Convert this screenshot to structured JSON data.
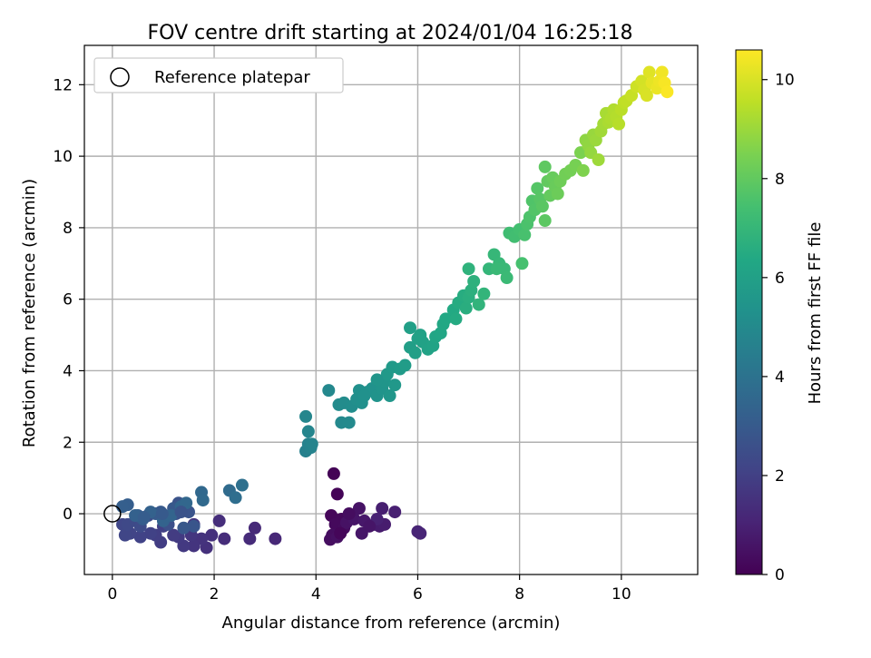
{
  "chart_data": {
    "type": "scatter",
    "title": "FOV centre drift starting at 2024/01/04 16:25:18",
    "xlabel": "Angular distance from reference (arcmin)",
    "ylabel": "Rotation from reference (arcmin)",
    "xlim": [
      -0.55,
      11.5
    ],
    "ylim": [
      -1.7,
      13.1
    ],
    "xticks": [
      "0",
      "2",
      "4",
      "6",
      "8",
      "10"
    ],
    "yticks": [
      "0",
      "2",
      "4",
      "6",
      "8",
      "10",
      "12"
    ],
    "grid": true,
    "legend": {
      "placement": "top-left",
      "entries": [
        {
          "label": "Reference platepar",
          "marker": "open-circle"
        }
      ]
    },
    "reference_point": {
      "x": 0,
      "y": 0
    },
    "colorbar": {
      "label": "Hours from first FF file",
      "colormap": "viridis",
      "range": [
        0,
        10.6
      ],
      "ticks": [
        "0",
        "2",
        "4",
        "6",
        "8",
        "10"
      ]
    },
    "series": [
      {
        "points": [
          [
            4.35,
            1.12,
            0.05
          ],
          [
            4.42,
            0.55,
            0.1
          ],
          [
            4.3,
            -0.05,
            0.15
          ],
          [
            4.5,
            -0.15,
            0.2
          ],
          [
            4.38,
            -0.3,
            0.25
          ],
          [
            4.55,
            -0.4,
            0.3
          ],
          [
            4.32,
            -0.6,
            0.35
          ],
          [
            4.28,
            -0.72,
            0.4
          ],
          [
            4.42,
            -0.65,
            0.45
          ],
          [
            4.6,
            -0.25,
            0.5
          ],
          [
            4.85,
            0.15,
            0.55
          ],
          [
            4.75,
            -0.15,
            0.6
          ],
          [
            4.9,
            -0.55,
            0.65
          ],
          [
            4.95,
            -0.2,
            0.7
          ],
          [
            5.15,
            -0.3,
            0.75
          ],
          [
            5.25,
            -0.35,
            0.8
          ],
          [
            5.35,
            -0.3,
            0.85
          ],
          [
            5.3,
            0.15,
            0.9
          ],
          [
            5.55,
            0.05,
            0.95
          ],
          [
            5.2,
            -0.15,
            1.0
          ],
          [
            6.0,
            -0.5,
            1.05
          ],
          [
            6.05,
            -0.55,
            1.1
          ],
          [
            4.48,
            -0.55,
            0.15
          ],
          [
            4.65,
            0.0,
            0.35
          ],
          [
            5.05,
            -0.35,
            0.6
          ]
        ]
      },
      {
        "points": [
          [
            3.2,
            -0.7,
            1.2
          ],
          [
            2.8,
            -0.4,
            1.25
          ],
          [
            2.7,
            -0.7,
            1.3
          ],
          [
            2.2,
            -0.7,
            1.35
          ],
          [
            2.1,
            -0.2,
            1.4
          ],
          [
            1.95,
            -0.6,
            1.45
          ],
          [
            1.85,
            -0.95,
            1.5
          ],
          [
            1.75,
            -0.7,
            1.55
          ],
          [
            1.6,
            -0.9,
            1.6
          ],
          [
            1.55,
            -0.6,
            1.65
          ],
          [
            1.6,
            -0.3,
            1.7
          ],
          [
            1.4,
            -0.9,
            1.75
          ],
          [
            1.3,
            -0.65,
            1.8
          ],
          [
            1.2,
            -0.6,
            1.85
          ],
          [
            0.95,
            -0.8,
            1.9
          ],
          [
            0.85,
            -0.6,
            1.95
          ],
          [
            1.0,
            -0.35,
            2.0
          ],
          [
            0.75,
            -0.55,
            2.05
          ],
          [
            0.55,
            -0.65,
            2.1
          ],
          [
            0.35,
            -0.55,
            2.15
          ],
          [
            0.25,
            -0.6,
            2.2
          ],
          [
            0.2,
            -0.3,
            2.25
          ],
          [
            0.3,
            -0.3,
            2.3
          ],
          [
            0.45,
            -0.2,
            2.35
          ],
          [
            0.55,
            -0.35,
            2.4
          ],
          [
            0.7,
            -0.05,
            2.45
          ],
          [
            0.9,
            0.0,
            2.5
          ],
          [
            1.05,
            -0.1,
            2.55
          ],
          [
            1.1,
            -0.3,
            2.6
          ],
          [
            1.25,
            0.0,
            2.65
          ],
          [
            1.3,
            0.3,
            2.7
          ],
          [
            1.5,
            0.05,
            2.75
          ],
          [
            1.6,
            -0.35,
            2.8
          ],
          [
            1.4,
            -0.4,
            2.85
          ],
          [
            1.2,
            0.15,
            2.9
          ],
          [
            0.95,
            0.05,
            2.95
          ],
          [
            0.85,
            0.0,
            3.0
          ],
          [
            0.6,
            -0.15,
            3.05
          ],
          [
            0.5,
            -0.05,
            3.1
          ],
          [
            0.3,
            0.25,
            3.15
          ],
          [
            0.2,
            0.2,
            3.2
          ],
          [
            0.45,
            -0.05,
            3.25
          ],
          [
            0.75,
            0.05,
            3.3
          ],
          [
            1.0,
            -0.2,
            3.35
          ],
          [
            1.15,
            -0.05,
            3.4
          ],
          [
            1.35,
            0.2,
            3.45
          ],
          [
            1.45,
            0.3,
            3.5
          ],
          [
            1.75,
            0.6,
            3.55
          ],
          [
            1.78,
            0.38,
            3.6
          ],
          [
            2.3,
            0.65,
            3.7
          ],
          [
            2.42,
            0.45,
            3.8
          ],
          [
            2.55,
            0.8,
            3.9
          ],
          [
            0.98,
            0.0,
            3.0
          ],
          [
            0.62,
            -0.1,
            3.1
          ],
          [
            1.35,
            0.05,
            2.7
          ]
        ]
      },
      {
        "points": [
          [
            3.8,
            1.75,
            4.6
          ],
          [
            3.85,
            1.95,
            4.65
          ],
          [
            3.9,
            1.85,
            4.7
          ],
          [
            3.92,
            1.95,
            4.75
          ],
          [
            3.85,
            2.3,
            4.8
          ],
          [
            3.8,
            2.72,
            4.85
          ],
          [
            4.25,
            3.45,
            4.9
          ],
          [
            4.5,
            2.55,
            4.95
          ],
          [
            4.65,
            2.55,
            5.0
          ],
          [
            4.45,
            3.05,
            5.05
          ],
          [
            4.55,
            3.1,
            5.1
          ],
          [
            4.7,
            3.0,
            5.15
          ],
          [
            4.8,
            3.2,
            5.2
          ],
          [
            4.85,
            3.45,
            5.25
          ],
          [
            5.0,
            3.4,
            5.3
          ],
          [
            5.1,
            3.5,
            5.35
          ],
          [
            5.2,
            3.3,
            5.4
          ],
          [
            5.3,
            3.5,
            5.45
          ],
          [
            5.35,
            3.7,
            5.5
          ],
          [
            5.45,
            3.3,
            5.55
          ],
          [
            5.55,
            3.6,
            5.6
          ],
          [
            5.4,
            3.9,
            5.65
          ],
          [
            5.5,
            4.1,
            5.7
          ],
          [
            5.65,
            4.05,
            5.75
          ],
          [
            5.75,
            4.15,
            5.8
          ],
          [
            4.9,
            3.1,
            5.25
          ],
          [
            5.2,
            3.75,
            5.5
          ],
          [
            4.95,
            3.3,
            5.3
          ]
        ]
      },
      {
        "points": [
          [
            5.85,
            4.65,
            5.9
          ],
          [
            5.95,
            4.5,
            5.95
          ],
          [
            6.0,
            4.9,
            6.0
          ],
          [
            6.1,
            4.8,
            6.05
          ],
          [
            6.2,
            4.6,
            6.1
          ],
          [
            6.3,
            4.7,
            6.15
          ],
          [
            6.35,
            4.95,
            6.2
          ],
          [
            6.45,
            5.05,
            6.25
          ],
          [
            6.5,
            5.3,
            6.3
          ],
          [
            6.55,
            5.45,
            6.35
          ],
          [
            5.85,
            5.2,
            5.95
          ],
          [
            6.05,
            5.0,
            6.05
          ],
          [
            6.7,
            5.7,
            6.4
          ],
          [
            6.75,
            5.45,
            6.45
          ],
          [
            6.8,
            5.9,
            6.5
          ],
          [
            6.9,
            6.1,
            6.55
          ],
          [
            6.95,
            5.75,
            6.6
          ],
          [
            7.0,
            6.05,
            6.65
          ],
          [
            7.05,
            6.25,
            6.7
          ],
          [
            7.1,
            6.5,
            6.75
          ],
          [
            7.0,
            6.85,
            6.8
          ],
          [
            7.2,
            5.85,
            6.85
          ],
          [
            7.3,
            6.15,
            6.9
          ],
          [
            7.4,
            6.85,
            6.95
          ],
          [
            7.5,
            7.25,
            7.0
          ],
          [
            7.6,
            7.0,
            7.05
          ],
          [
            7.7,
            6.85,
            7.1
          ],
          [
            7.75,
            6.6,
            7.15
          ],
          [
            7.55,
            6.85,
            7.1
          ]
        ]
      },
      {
        "points": [
          [
            7.8,
            7.85,
            7.3
          ],
          [
            7.9,
            7.75,
            7.35
          ],
          [
            8.0,
            7.95,
            7.4
          ],
          [
            8.05,
            7.0,
            7.45
          ],
          [
            8.1,
            7.8,
            7.5
          ],
          [
            8.15,
            8.1,
            7.55
          ],
          [
            8.2,
            8.3,
            7.6
          ],
          [
            8.25,
            8.75,
            7.65
          ],
          [
            8.3,
            8.5,
            7.7
          ],
          [
            8.35,
            9.1,
            7.75
          ],
          [
            8.4,
            8.8,
            7.8
          ],
          [
            8.45,
            8.6,
            7.85
          ],
          [
            8.5,
            8.2,
            7.9
          ],
          [
            8.5,
            9.7,
            7.95
          ],
          [
            8.55,
            9.3,
            8.0
          ],
          [
            8.6,
            8.9,
            8.05
          ],
          [
            8.65,
            9.4,
            8.1
          ],
          [
            8.7,
            9.15,
            8.15
          ],
          [
            8.75,
            8.95,
            8.2
          ],
          [
            8.8,
            9.3,
            8.25
          ],
          [
            8.9,
            9.5,
            8.3
          ],
          [
            9.0,
            9.6,
            8.35
          ],
          [
            9.1,
            9.75,
            8.4
          ],
          [
            9.2,
            10.1,
            8.5
          ],
          [
            9.25,
            9.6,
            8.55
          ]
        ]
      },
      {
        "points": [
          [
            9.3,
            10.45,
            8.8
          ],
          [
            9.35,
            10.3,
            8.85
          ],
          [
            9.4,
            10.1,
            8.9
          ],
          [
            9.45,
            10.6,
            8.95
          ],
          [
            9.5,
            10.45,
            9.0
          ],
          [
            9.55,
            9.9,
            9.05
          ],
          [
            9.6,
            10.7,
            9.1
          ],
          [
            9.65,
            10.9,
            9.15
          ],
          [
            9.7,
            11.2,
            9.2
          ],
          [
            9.75,
            10.95,
            9.25
          ],
          [
            9.8,
            11.05,
            9.3
          ],
          [
            9.85,
            11.3,
            9.35
          ],
          [
            9.9,
            11.1,
            9.4
          ],
          [
            9.95,
            10.9,
            9.45
          ],
          [
            10.0,
            11.3,
            9.5
          ],
          [
            10.05,
            11.5,
            9.55
          ],
          [
            10.1,
            11.55,
            9.6
          ],
          [
            10.2,
            11.7,
            9.7
          ],
          [
            10.3,
            11.95,
            9.8
          ],
          [
            10.4,
            12.1,
            9.9
          ],
          [
            10.45,
            11.85,
            9.95
          ],
          [
            10.5,
            11.7,
            10.0
          ],
          [
            10.55,
            12.35,
            10.1
          ],
          [
            10.6,
            12.05,
            10.2
          ],
          [
            10.7,
            11.9,
            10.3
          ],
          [
            10.75,
            12.1,
            10.35
          ],
          [
            10.8,
            12.35,
            10.4
          ],
          [
            10.85,
            12.05,
            10.5
          ],
          [
            10.9,
            11.8,
            10.55
          ]
        ]
      }
    ]
  }
}
